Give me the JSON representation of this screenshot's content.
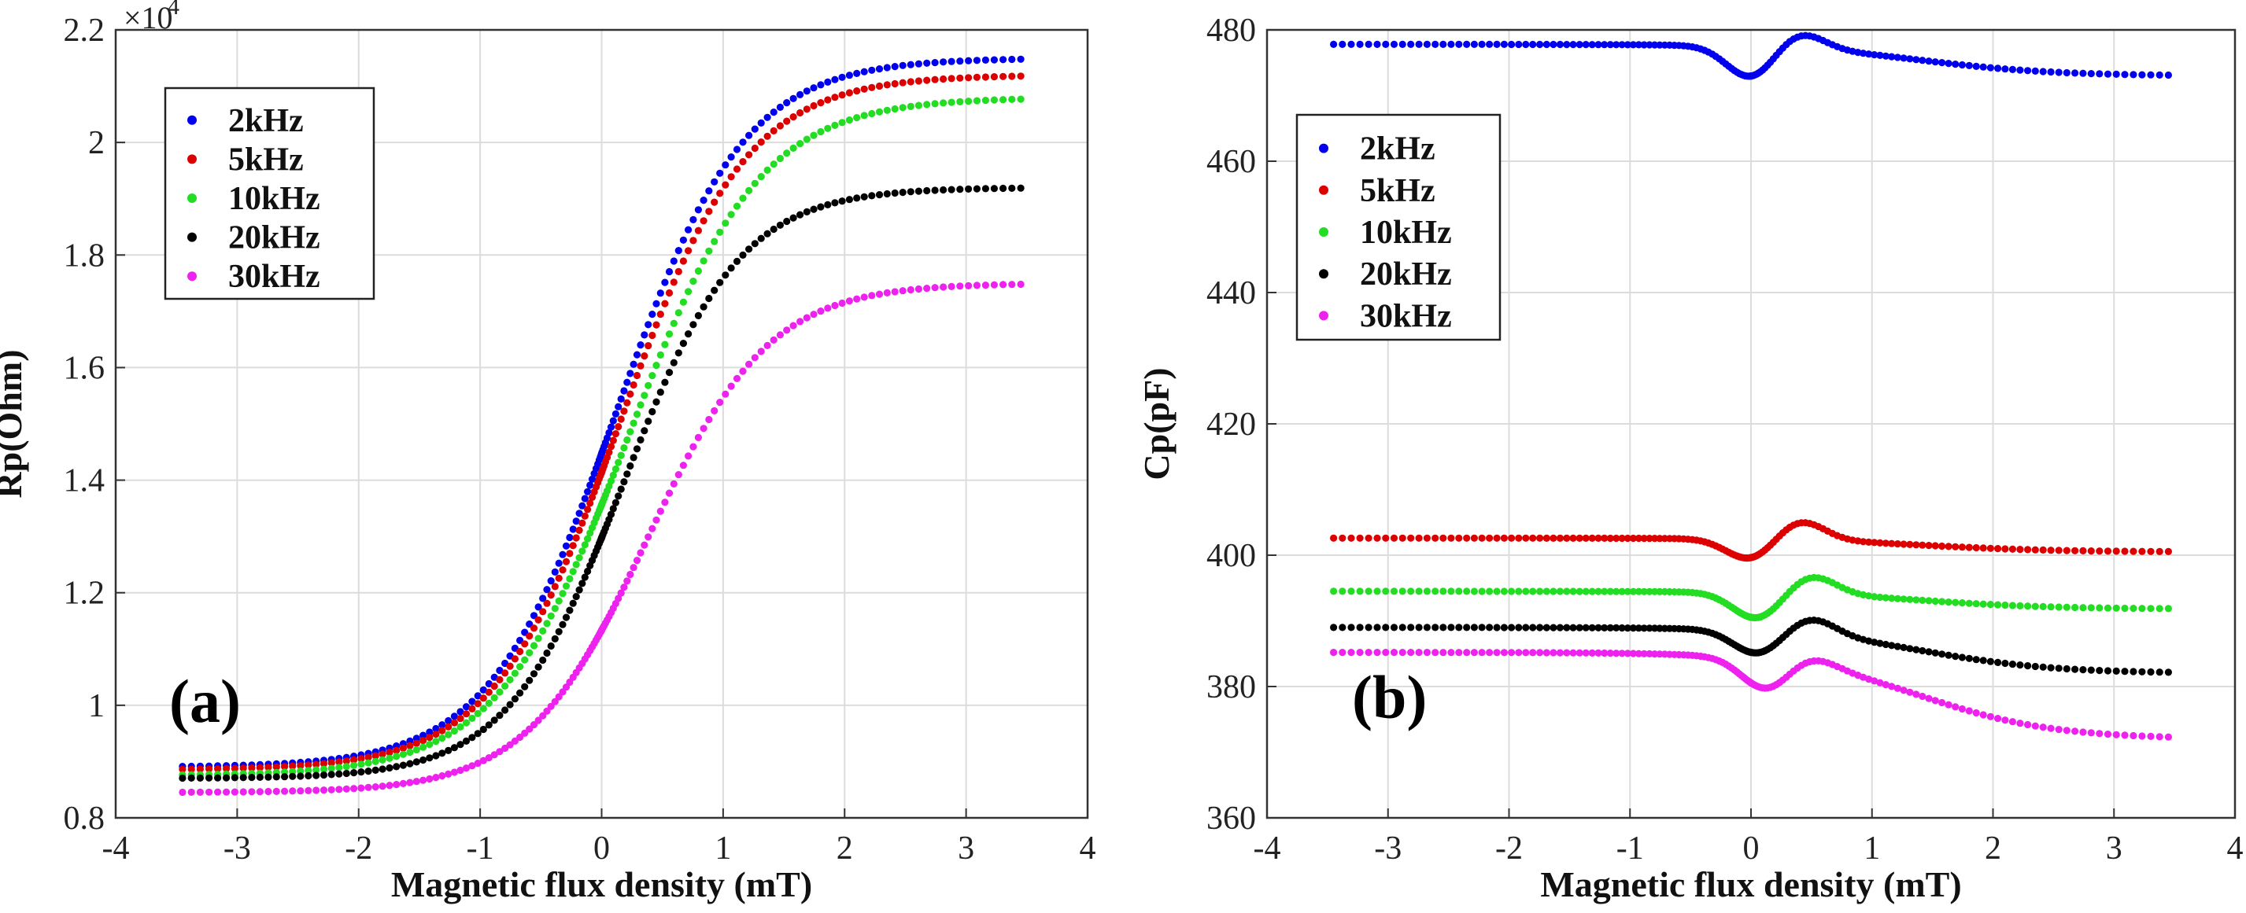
{
  "chart_data": [
    {
      "type": "scatter",
      "panel_label": "(a)",
      "title": "",
      "xlabel": "Magnetic flux density (mT)",
      "ylabel": "Rp(Ohm)",
      "xlim": [
        -4,
        4
      ],
      "ylim": [
        0.8,
        2.2
      ],
      "xticks": [
        -4,
        -3,
        -2,
        -1,
        0,
        1,
        2,
        3,
        4
      ],
      "xtick_labels": [
        "-4",
        "-3",
        "-2",
        "-1",
        "0",
        "1",
        "2",
        "3",
        "4"
      ],
      "yticks": [
        0.8,
        1.0,
        1.2,
        1.4,
        1.6,
        1.8,
        2.0,
        2.2
      ],
      "ytick_labels": [
        "0.8",
        "1",
        "1.2",
        "1.4",
        "1.6",
        "1.8",
        "2",
        "2.2"
      ],
      "y_multiplier": "×10",
      "y_multiplier_exponent": "4",
      "grid": true,
      "legend_position": "top-left",
      "x_range": [
        -3.45,
        3.45
      ],
      "series": [
        {
          "name": "2kHz",
          "color": "#0000ee",
          "model": {
            "low": 0.89,
            "high": 2.15,
            "x0": 0.12,
            "w": 0.52
          }
        },
        {
          "name": "5kHz",
          "color": "#dd0000",
          "model": {
            "low": 0.885,
            "high": 2.12,
            "x0": 0.15,
            "w": 0.52
          }
        },
        {
          "name": "10kHz",
          "color": "#22dd22",
          "model": {
            "low": 0.875,
            "high": 2.08,
            "x0": 0.22,
            "w": 0.54
          }
        },
        {
          "name": "20kHz",
          "color": "#000000",
          "model": {
            "low": 0.87,
            "high": 1.92,
            "x0": 0.18,
            "w": 0.48
          }
        },
        {
          "name": "30kHz",
          "color": "#ee22ee",
          "model": {
            "low": 0.845,
            "high": 1.75,
            "x0": 0.38,
            "w": 0.5
          }
        }
      ]
    },
    {
      "type": "scatter",
      "panel_label": "(b)",
      "title": "",
      "xlabel": "Magnetic flux density (mT)",
      "ylabel": "Cp(pF)",
      "xlim": [
        -4,
        4
      ],
      "ylim": [
        360,
        480
      ],
      "xticks": [
        -4,
        -3,
        -2,
        -1,
        0,
        1,
        2,
        3,
        4
      ],
      "xtick_labels": [
        "-4",
        "-3",
        "-2",
        "-1",
        "0",
        "1",
        "2",
        "3",
        "4"
      ],
      "yticks": [
        360,
        380,
        400,
        420,
        440,
        460,
        480
      ],
      "ytick_labels": [
        "360",
        "380",
        "400",
        "420",
        "440",
        "460",
        "480"
      ],
      "grid": true,
      "legend_position": "top-left",
      "x_range": [
        -3.45,
        3.45
      ],
      "series": [
        {
          "name": "2kHz",
          "color": "#0000ee",
          "model": {
            "base": 477.8,
            "end": 473.0,
            "dip": -4.8,
            "dip_x": 0.0,
            "peak": 2.5,
            "peak_x": 0.4
          }
        },
        {
          "name": "5kHz",
          "color": "#dd0000",
          "model": {
            "base": 402.6,
            "end": 400.5,
            "dip": -3.2,
            "dip_x": 0.0,
            "peak": 3.0,
            "peak_x": 0.4
          }
        },
        {
          "name": "10kHz",
          "color": "#22dd22",
          "model": {
            "base": 394.5,
            "end": 391.8,
            "dip": -4.0,
            "dip_x": 0.05,
            "peak": 2.8,
            "peak_x": 0.5
          }
        },
        {
          "name": "20kHz",
          "color": "#000000",
          "model": {
            "base": 389.0,
            "end": 382.0,
            "dip": -3.5,
            "dip_x": 0.05,
            "peak": 2.5,
            "peak_x": 0.5
          }
        },
        {
          "name": "30kHz",
          "color": "#ee22ee",
          "model": {
            "base": 385.2,
            "end": 372.0,
            "dip": -4.5,
            "dip_x": 0.12,
            "peak": 1.5,
            "peak_x": 0.5
          }
        }
      ]
    }
  ]
}
